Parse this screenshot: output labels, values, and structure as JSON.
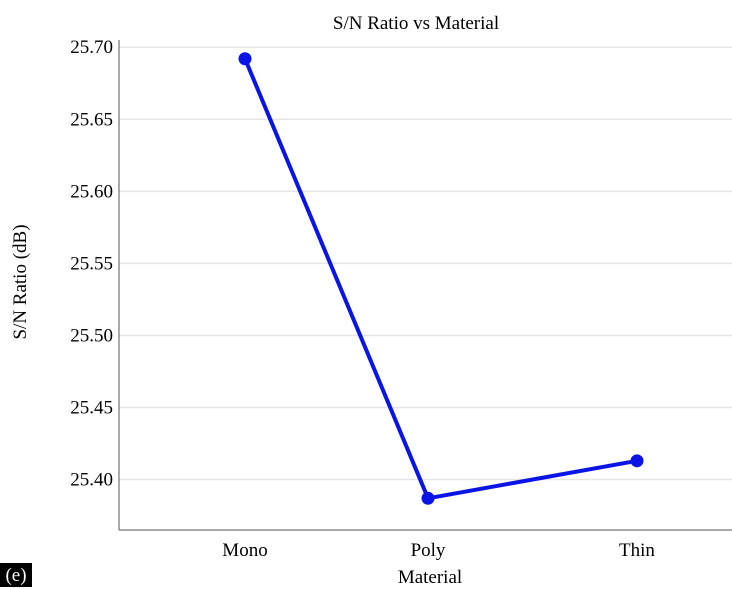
{
  "panel_label": "(e)",
  "chart_data": {
    "type": "line",
    "title": "S/N Ratio vs Material",
    "xlabel": "Material",
    "ylabel": "S/N Ratio (dB)",
    "categories": [
      "Mono",
      "Poly",
      "Thin"
    ],
    "values": [
      25.692,
      25.387,
      25.413
    ],
    "ylim": [
      25.365,
      25.705
    ],
    "yticks": [
      25.4,
      25.45,
      25.5,
      25.55,
      25.6,
      25.65,
      25.7
    ],
    "ytick_labels": [
      "25.40",
      "25.45",
      "25.50",
      "25.55",
      "25.60",
      "25.65",
      "25.70"
    ],
    "grid": true,
    "color": "#0a14e6"
  }
}
